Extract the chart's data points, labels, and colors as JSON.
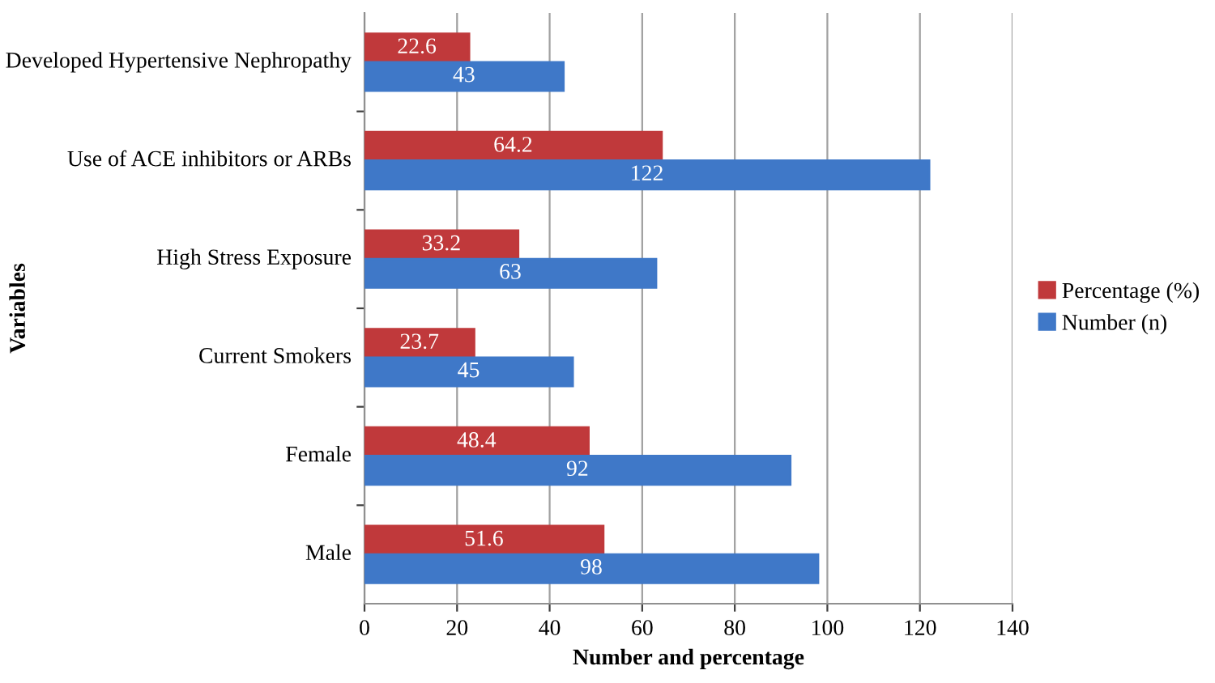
{
  "chart_data": {
    "type": "bar",
    "orientation": "horizontal",
    "categories": [
      "Developed Hypertensive Nephropathy",
      "Use of ACE inhibitors or ARBs",
      "High Stress Exposure",
      "Current Smokers",
      "Female",
      "Male"
    ],
    "series": [
      {
        "name": "Percentage (%)",
        "color": "#c0393b",
        "values": [
          22.6,
          64.2,
          33.2,
          23.7,
          48.4,
          51.6
        ]
      },
      {
        "name": "Number (n)",
        "color": "#3f78c8",
        "values": [
          43,
          122,
          63,
          45,
          92,
          98
        ]
      }
    ],
    "xlim": [
      0,
      140
    ],
    "xticks": [
      0,
      20,
      40,
      60,
      80,
      100,
      120,
      140
    ],
    "xlabel": "Number and percentage",
    "ylabel": "Variables",
    "data_labels": true,
    "grid": "x",
    "legend": "right"
  }
}
